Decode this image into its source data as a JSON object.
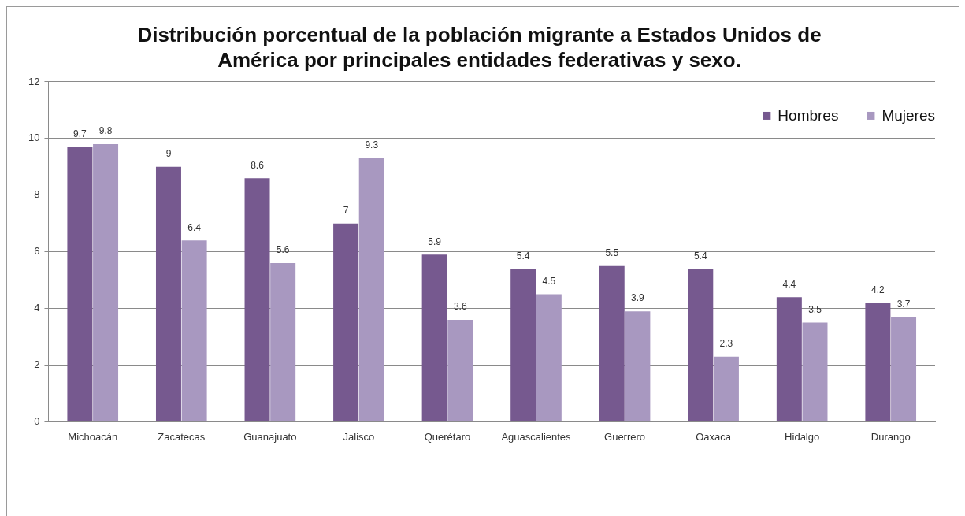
{
  "chart_data": {
    "type": "bar",
    "title": "Distribución porcentual de la población migrante a Estados Unidos de América por principales entidades federativas y sexo.",
    "categories": [
      "Michoacán",
      "Zacatecas",
      "Guanajuato",
      "Jalisco",
      "Querétaro",
      "Aguascalientes",
      "Guerrero",
      "Oaxaca",
      "Hidalgo",
      "Durango"
    ],
    "series": [
      {
        "name": "Hombres",
        "color": "#76598f",
        "values": [
          9.7,
          9,
          8.6,
          7,
          5.9,
          5.4,
          5.5,
          5.4,
          4.4,
          4.2
        ]
      },
      {
        "name": "Mujeres",
        "color": "#a898c0",
        "values": [
          9.8,
          6.4,
          5.6,
          9.3,
          3.6,
          4.5,
          3.9,
          2.3,
          3.5,
          3.7
        ]
      }
    ],
    "ylim": [
      0,
      12
    ],
    "yticks": [
      0,
      2,
      4,
      6,
      8,
      10,
      12
    ],
    "grid": "y",
    "legend": "top right",
    "data_labels": true
  }
}
